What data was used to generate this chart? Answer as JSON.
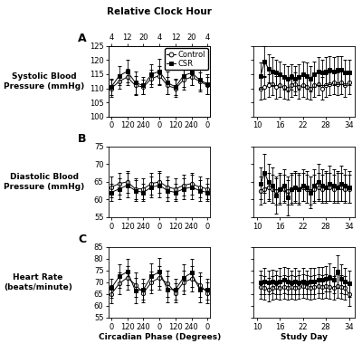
{
  "title_top": "Relative Clock Hour",
  "xlabel_left": "Circadian Phase (Degrees)",
  "xlabel_right": "Study Day",
  "panel_labels": [
    "A",
    "B",
    "C"
  ],
  "row_labels": [
    "Systolic Blood\nPressure (mmHg)",
    "Diastolic Blood\nPressure (mmHg)",
    "Heart Rate\n(beats/minute)"
  ],
  "legend_labels": [
    "Control",
    "CSR"
  ],
  "circ_x": [
    0,
    60,
    120,
    180,
    240,
    300,
    360,
    420,
    480,
    540,
    600,
    660,
    720
  ],
  "clock_x_ticks": [
    0,
    120,
    240,
    360,
    480,
    600,
    720
  ],
  "clock_x_labels": [
    "0",
    "120",
    "240",
    "0",
    "120",
    "240",
    "0"
  ],
  "top_x_ticks": [
    0,
    120,
    240,
    360,
    480,
    600,
    720
  ],
  "top_x_labels": [
    "4",
    "12",
    "20",
    "4",
    "12",
    "20",
    "4"
  ],
  "sbp_circ_control": [
    110.0,
    112.5,
    114.0,
    111.0,
    110.5,
    113.5,
    114.5,
    111.0,
    110.0,
    113.0,
    114.0,
    112.5,
    111.0
  ],
  "sbp_circ_control_err": [
    3.0,
    2.5,
    3.0,
    3.5,
    2.5,
    3.0,
    3.5,
    3.0,
    3.0,
    3.5,
    3.0,
    3.0,
    3.0
  ],
  "sbp_circ_csr": [
    110.5,
    114.5,
    116.0,
    112.0,
    111.0,
    115.0,
    116.0,
    112.0,
    110.5,
    114.5,
    115.5,
    113.0,
    111.5
  ],
  "sbp_circ_csr_err": [
    3.0,
    3.5,
    4.0,
    4.0,
    3.0,
    3.5,
    4.5,
    4.0,
    3.0,
    4.0,
    4.5,
    4.0,
    3.5
  ],
  "dbp_circ_control": [
    63.5,
    64.5,
    65.0,
    63.0,
    63.0,
    64.5,
    65.0,
    63.5,
    63.0,
    64.0,
    64.5,
    63.5,
    63.0
  ],
  "dbp_circ_control_err": [
    3.0,
    3.0,
    3.0,
    3.0,
    3.0,
    3.0,
    3.0,
    3.0,
    3.0,
    3.0,
    3.0,
    3.0,
    3.0
  ],
  "dbp_circ_csr": [
    62.0,
    63.0,
    64.0,
    62.5,
    62.0,
    63.5,
    64.0,
    62.5,
    62.0,
    63.0,
    63.5,
    62.5,
    62.0
  ],
  "dbp_circ_csr_err": [
    2.5,
    3.0,
    3.5,
    3.0,
    2.5,
    3.0,
    3.5,
    3.0,
    2.5,
    3.0,
    3.5,
    3.0,
    2.5
  ],
  "hr_circ_control": [
    65.0,
    69.5,
    72.0,
    69.0,
    65.5,
    70.0,
    72.0,
    69.5,
    65.5,
    70.0,
    71.5,
    69.0,
    65.5
  ],
  "hr_circ_control_err": [
    4.0,
    4.5,
    5.0,
    5.0,
    4.0,
    4.5,
    5.0,
    5.5,
    4.0,
    5.0,
    5.5,
    5.0,
    4.5
  ],
  "hr_circ_csr": [
    67.5,
    72.5,
    74.5,
    66.5,
    67.0,
    72.5,
    74.5,
    67.0,
    67.0,
    72.0,
    74.0,
    67.0,
    67.0
  ],
  "hr_circ_csr_err": [
    4.0,
    5.0,
    5.5,
    5.5,
    4.5,
    5.5,
    6.0,
    5.5,
    4.5,
    5.5,
    6.0,
    5.5,
    4.5
  ],
  "study_x": [
    11,
    12,
    13,
    14,
    15,
    16,
    17,
    18,
    19,
    20,
    21,
    22,
    23,
    24,
    25,
    26,
    27,
    28,
    29,
    30,
    31,
    32,
    33,
    34
  ],
  "study_x_ticks": [
    10,
    16,
    22,
    28,
    34
  ],
  "sbp_study_control": [
    110.0,
    110.5,
    111.0,
    111.5,
    110.5,
    111.0,
    110.5,
    110.0,
    111.0,
    111.5,
    110.5,
    111.0,
    110.5,
    110.0,
    111.0,
    111.5,
    110.0,
    111.0,
    111.5,
    112.0,
    111.5,
    112.0,
    111.0,
    112.0
  ],
  "sbp_study_control_err": [
    4.0,
    4.0,
    4.0,
    4.0,
    4.0,
    4.0,
    4.0,
    4.0,
    4.0,
    4.0,
    4.0,
    4.0,
    4.0,
    4.0,
    4.0,
    4.0,
    4.0,
    4.0,
    4.0,
    4.0,
    4.0,
    4.0,
    4.0,
    4.0
  ],
  "sbp_study_csr": [
    114.5,
    119.5,
    117.0,
    116.0,
    115.5,
    115.0,
    114.0,
    113.5,
    114.0,
    113.5,
    114.0,
    115.0,
    114.5,
    113.5,
    115.0,
    116.0,
    115.5,
    116.0,
    116.5,
    116.0,
    116.5,
    116.5,
    115.5,
    115.5
  ],
  "sbp_study_csr_err": [
    4.5,
    5.5,
    5.0,
    5.0,
    4.5,
    4.5,
    4.5,
    4.5,
    4.5,
    4.5,
    4.5,
    4.5,
    4.5,
    4.5,
    4.5,
    5.0,
    4.5,
    5.0,
    5.0,
    5.0,
    5.0,
    5.0,
    4.5,
    4.5
  ],
  "dbp_study_control": [
    62.5,
    63.0,
    63.5,
    63.0,
    62.5,
    63.0,
    63.0,
    62.5,
    63.0,
    63.5,
    63.0,
    63.5,
    63.0,
    62.5,
    63.0,
    63.5,
    63.0,
    63.5,
    63.5,
    63.0,
    63.5,
    63.5,
    63.0,
    63.0
  ],
  "dbp_study_control_err": [
    4.0,
    4.0,
    4.0,
    4.0,
    4.0,
    4.0,
    4.0,
    4.0,
    4.0,
    4.0,
    4.0,
    4.0,
    4.0,
    4.0,
    4.0,
    4.0,
    4.0,
    4.0,
    4.0,
    4.0,
    4.0,
    4.0,
    4.0,
    4.0
  ],
  "dbp_study_csr": [
    64.5,
    67.5,
    65.0,
    64.0,
    61.0,
    63.0,
    64.0,
    60.5,
    63.0,
    63.5,
    63.0,
    64.0,
    63.5,
    62.0,
    64.0,
    65.0,
    64.0,
    63.5,
    64.5,
    64.0,
    63.5,
    64.5,
    64.0,
    63.5
  ],
  "dbp_study_csr_err": [
    4.5,
    5.5,
    5.0,
    5.0,
    5.0,
    4.5,
    4.5,
    5.0,
    4.5,
    4.5,
    4.5,
    4.5,
    4.5,
    4.5,
    4.5,
    5.0,
    4.5,
    4.5,
    5.0,
    4.5,
    4.5,
    5.0,
    4.5,
    4.5
  ],
  "hr_study_control": [
    68.0,
    67.5,
    67.0,
    67.5,
    68.0,
    67.5,
    68.0,
    67.5,
    68.0,
    67.5,
    68.0,
    68.5,
    68.0,
    67.5,
    68.0,
    68.5,
    68.0,
    68.5,
    68.0,
    67.5,
    68.5,
    68.0,
    67.5,
    65.0
  ],
  "hr_study_control_err": [
    5.0,
    5.0,
    5.0,
    5.0,
    5.0,
    5.0,
    5.0,
    5.0,
    5.0,
    5.0,
    5.0,
    5.0,
    5.0,
    5.0,
    5.0,
    5.0,
    5.0,
    5.0,
    5.0,
    5.0,
    5.0,
    5.0,
    5.0,
    5.0
  ],
  "hr_study_csr": [
    70.0,
    70.5,
    70.0,
    70.5,
    70.0,
    70.5,
    71.0,
    70.5,
    70.0,
    70.5,
    70.0,
    70.5,
    70.0,
    70.5,
    70.5,
    71.0,
    71.0,
    71.5,
    72.0,
    71.0,
    74.5,
    71.5,
    70.5,
    69.5
  ],
  "hr_study_csr_err": [
    5.0,
    5.5,
    5.0,
    5.0,
    5.0,
    5.5,
    5.5,
    5.5,
    5.0,
    5.5,
    5.0,
    5.5,
    5.0,
    5.5,
    5.5,
    5.5,
    5.5,
    5.5,
    6.0,
    5.5,
    7.0,
    6.0,
    5.5,
    5.5
  ],
  "sbp_ylim": [
    100,
    125
  ],
  "sbp_yticks": [
    100,
    105,
    110,
    115,
    120,
    125
  ],
  "dbp_ylim": [
    55,
    75
  ],
  "dbp_yticks": [
    55,
    60,
    65,
    70,
    75
  ],
  "hr_ylim": [
    55,
    85
  ],
  "hr_yticks": [
    55,
    60,
    65,
    70,
    75,
    80,
    85
  ],
  "bg_color": "#ffffff",
  "fontsize": 6.0,
  "label_fontsize": 6.5,
  "title_fontsize": 7.5,
  "panel_fontsize": 9.0
}
